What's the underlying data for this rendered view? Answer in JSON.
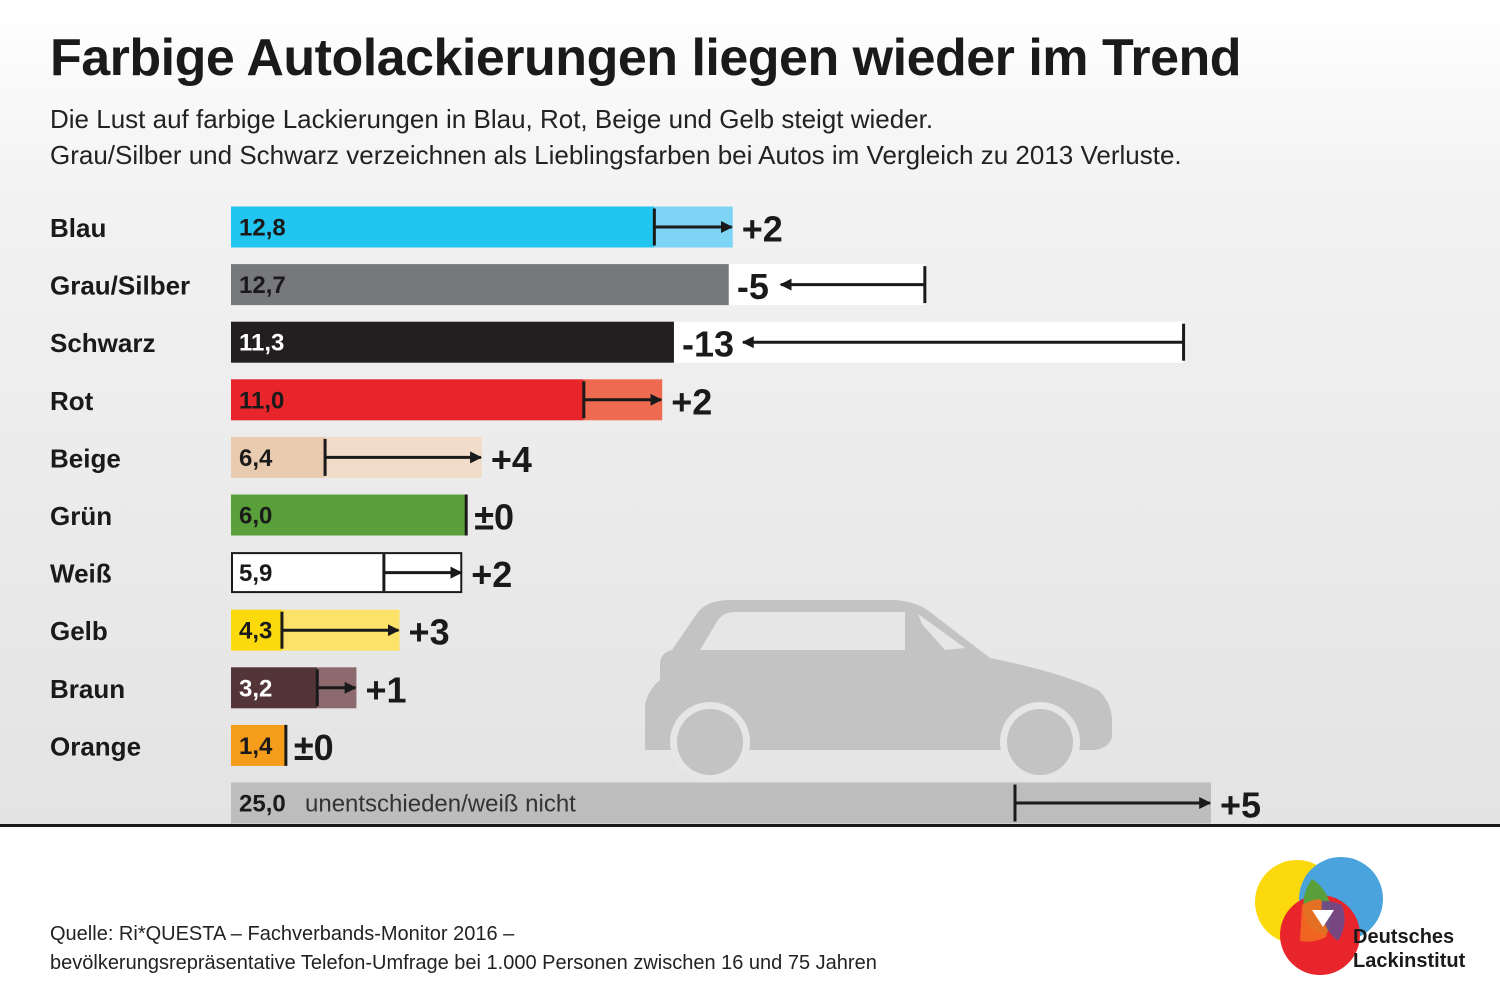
{
  "title": "Farbige Autolackierungen liegen wieder im Trend",
  "subtitle_lines": [
    "Die Lust auf farbige Lackierungen in Blau, Rot, Beige und Gelb steigt wieder.",
    "Grau/Silber und Schwarz verzeichnen als Lieblingsfarben bei Autos im Vergleich zu 2013 Verluste."
  ],
  "chart_data": {
    "type": "bar",
    "orientation": "horizontal",
    "categories": [
      "Blau",
      "Grau/Silber",
      "Schwarz",
      "Rot",
      "Beige",
      "Grün",
      "Weiß",
      "Gelb",
      "Braun",
      "Orange"
    ],
    "series": [
      {
        "values": [
          12.8,
          12.7,
          11.3,
          11.0,
          6.4,
          6.0,
          5.9,
          4.3,
          3.2,
          1.4
        ]
      }
    ],
    "value_labels": [
      "12,8",
      "12,7",
      "11,3",
      "11,0",
      "6,4",
      "6,0",
      "5,9",
      "4,3",
      "3,2",
      "1,4"
    ],
    "changes": [
      2,
      -5,
      -13,
      2,
      4,
      0,
      2,
      3,
      1,
      0
    ],
    "change_labels": [
      "+2",
      "-5",
      "-13",
      "+2",
      "+4",
      "±0",
      "+2",
      "+3",
      "+1",
      "±0"
    ],
    "colors": [
      "#22c4f0",
      "#77787b",
      "#231f20",
      "#e8252b",
      "#e9cbb0",
      "#5aa03a",
      "#ffffff",
      "#fcd90c",
      "#533537",
      "#f59d1b"
    ],
    "change_colors": [
      "#7dd4f5",
      "#ffffff",
      "#ffffff",
      "#ee6a50",
      "#f0dcc8",
      "#5aa03a",
      "#ffffff",
      "#fde26a",
      "#8d6a6e",
      "#f59d1b"
    ],
    "value_label_colors": [
      "#1a1a1a",
      "#1a1a1a",
      "#ffffff",
      "#1a1a1a",
      "#1a1a1a",
      "#1a1a1a",
      "#1a1a1a",
      "#1a1a1a",
      "#ffffff",
      "#1a1a1a"
    ],
    "extra_row": {
      "value": 25.0,
      "value_label": "25,0",
      "label": "unentschieden/weiß nicht",
      "change": 5,
      "change_label": "+5",
      "color": "#bdbdbd"
    }
  },
  "source_lines": [
    "Quelle: Ri*QUESTA – Fachverbands-Monitor 2016 –",
    "bevölkerungsrepräsentative Telefon-Umfrage bei 1.000 Personen zwischen 16 und 75 Jahren"
  ],
  "logo": {
    "text_lines": [
      "Deutsches",
      "Lackinstitut"
    ],
    "colors": [
      "#fcd90c",
      "#4aa3dc",
      "#e8252b",
      "#5aa03a",
      "#f36c21",
      "#6b4a8b"
    ]
  },
  "car_color": "#c3c3c3"
}
